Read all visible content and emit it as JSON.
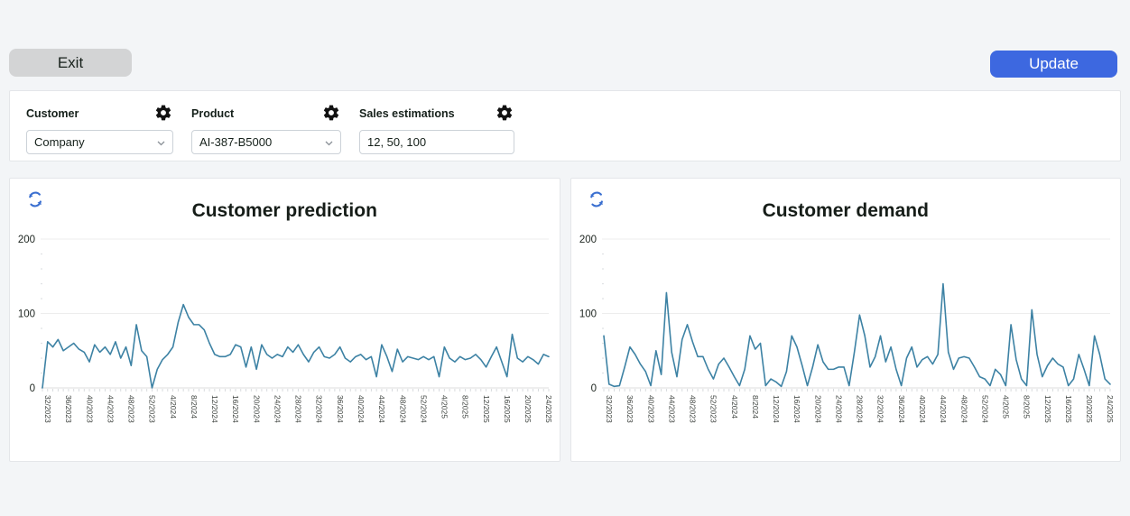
{
  "toolbar": {
    "exit_label": "Exit",
    "update_label": "Update"
  },
  "filters": {
    "customer": {
      "label": "Customer",
      "value": "Company"
    },
    "product": {
      "label": "Product",
      "value": "AI-387-B5000"
    },
    "sales": {
      "label": "Sales estimations",
      "value": "12, 50, 100"
    }
  },
  "colors": {
    "accent_blue": "#3d68e0",
    "refresh_blue": "#3a6fd0",
    "line_color": "#3d82a4",
    "grid_color": "#ededed",
    "axis_color": "#dddddd",
    "page_bg": "#f3f5f7",
    "card_bg": "#ffffff"
  },
  "chart_data": [
    {
      "type": "line",
      "title": "Customer prediction",
      "xlabel": "",
      "ylabel": "",
      "ylim": [
        0,
        200
      ],
      "yticks": [
        0,
        100,
        200
      ],
      "grid": true,
      "legend": "none",
      "x_tick_labels": [
        "32/2023",
        "36/2023",
        "40/2023",
        "44/2023",
        "48/2023",
        "52/2023",
        "4/2024",
        "8/2024",
        "12/2024",
        "16/2024",
        "20/2024",
        "24/2024",
        "28/2024",
        "32/2024",
        "36/2024",
        "40/2024",
        "44/2024",
        "48/2024",
        "52/2024",
        "4/2025",
        "8/2025",
        "12/2025",
        "16/2025",
        "20/2025",
        "24/2025"
      ],
      "tick_every": 4,
      "values": [
        0,
        62,
        55,
        65,
        50,
        55,
        60,
        52,
        48,
        35,
        58,
        48,
        55,
        45,
        62,
        40,
        55,
        30,
        85,
        50,
        42,
        0,
        25,
        38,
        45,
        55,
        88,
        112,
        95,
        85,
        85,
        78,
        60,
        45,
        42,
        42,
        45,
        58,
        55,
        28,
        55,
        25,
        58,
        45,
        40,
        45,
        42,
        55,
        48,
        58,
        45,
        35,
        48,
        55,
        42,
        40,
        45,
        55,
        40,
        35,
        42,
        45,
        38,
        42,
        15,
        58,
        42,
        22,
        52,
        35,
        42,
        40,
        38,
        42,
        38,
        42,
        15,
        55,
        40,
        35,
        42,
        38,
        40,
        45,
        38,
        28,
        42,
        55,
        35,
        15,
        72,
        40,
        35,
        42,
        38,
        32,
        45,
        42
      ]
    },
    {
      "type": "line",
      "title": "Customer demand",
      "xlabel": "",
      "ylabel": "",
      "ylim": [
        0,
        200
      ],
      "yticks": [
        0,
        100,
        200
      ],
      "grid": true,
      "legend": "none",
      "x_tick_labels": [
        "32/2023",
        "36/2023",
        "40/2023",
        "44/2023",
        "48/2023",
        "52/2023",
        "4/2024",
        "8/2024",
        "12/2024",
        "16/2024",
        "20/2024",
        "24/2024",
        "28/2024",
        "32/2024",
        "36/2024",
        "40/2024",
        "44/2024",
        "48/2024",
        "52/2024",
        "4/2025",
        "8/2025",
        "12/2025",
        "16/2025",
        "20/2025",
        "24/2025"
      ],
      "tick_every": 4,
      "values": [
        70,
        5,
        2,
        3,
        28,
        55,
        45,
        32,
        22,
        3,
        50,
        18,
        128,
        48,
        15,
        65,
        85,
        62,
        42,
        42,
        25,
        12,
        32,
        40,
        28,
        15,
        3,
        25,
        70,
        52,
        60,
        3,
        12,
        8,
        2,
        22,
        70,
        55,
        30,
        3,
        28,
        58,
        35,
        25,
        25,
        28,
        28,
        3,
        48,
        98,
        70,
        28,
        42,
        70,
        35,
        55,
        25,
        3,
        40,
        55,
        28,
        38,
        42,
        32,
        45,
        140,
        48,
        25,
        40,
        42,
        40,
        28,
        15,
        12,
        3,
        25,
        18,
        3,
        85,
        38,
        12,
        3,
        105,
        45,
        15,
        30,
        40,
        32,
        28,
        3,
        12,
        45,
        25,
        3,
        70,
        45,
        12,
        5
      ]
    }
  ]
}
